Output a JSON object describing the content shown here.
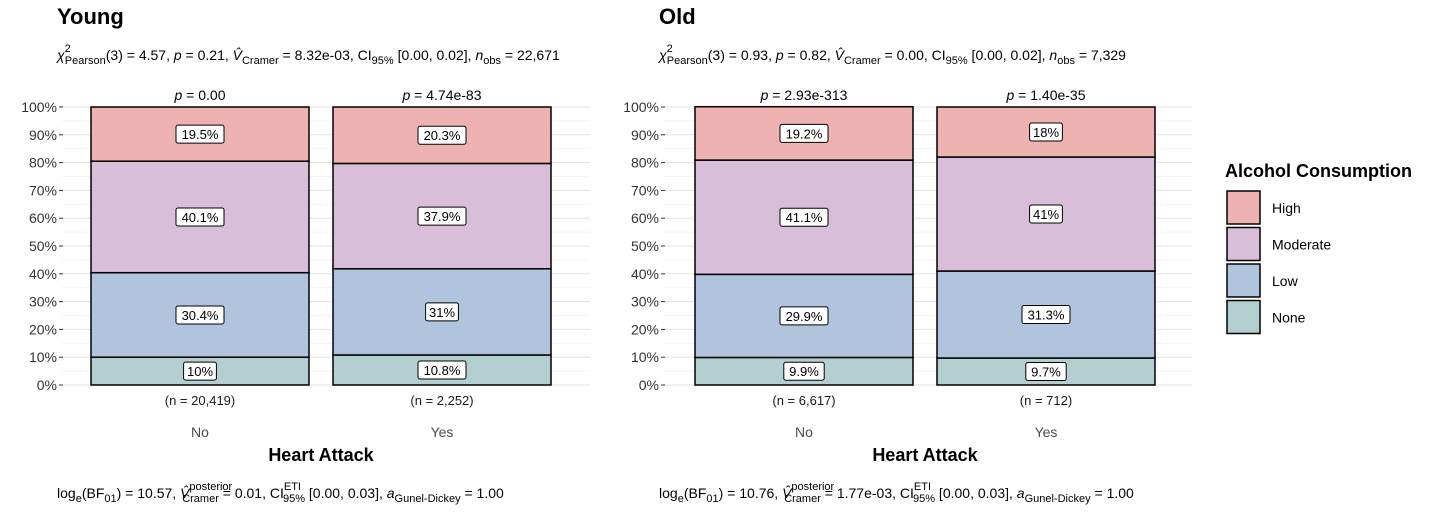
{
  "chart_data": {
    "type": "bar",
    "stacked": "percent",
    "legend": {
      "title": "Alcohol Consumption",
      "position": "right",
      "items": [
        {
          "name": "High",
          "color": "#eeb2b0"
        },
        {
          "name": "Moderate",
          "color": "#d8bed8"
        },
        {
          "name": "Low",
          "color": "#b0c4de"
        },
        {
          "name": "None",
          "color": "#b4cfcf"
        }
      ]
    },
    "y_ticks": [
      "0%",
      "10%",
      "20%",
      "30%",
      "40%",
      "50%",
      "60%",
      "70%",
      "80%",
      "90%",
      "100%"
    ],
    "ylim": [
      0,
      100
    ],
    "panels": [
      {
        "title": "Young",
        "subtitle": "χ²Pearson(3) = 4.57, p = 0.21, V̂Cramer = 8.32e-03, CI95% [0.00, 0.02], nobs = 22,671",
        "xlabel": "Heart Attack",
        "caption": "loge(BF01) = 10.57, V̂posteriorCramer = 0.01, CIETI95% [0.00, 0.03], aGunel-Dickey = 1.00",
        "categories": [
          {
            "name": "No",
            "n_label": "(n = 20,419)",
            "p_label": "p = 0.00",
            "values": {
              "None": 10,
              "Low": 30.4,
              "Moderate": 40.1,
              "High": 19.5
            },
            "labels": {
              "None": "10%",
              "Low": "30.4%",
              "Moderate": "40.1%",
              "High": "19.5%"
            }
          },
          {
            "name": "Yes",
            "n_label": "(n = 2,252)",
            "p_label": "p = 4.74e-83",
            "values": {
              "None": 10.8,
              "Low": 31,
              "Moderate": 37.9,
              "High": 20.3
            },
            "labels": {
              "None": "10.8%",
              "Low": "31%",
              "Moderate": "37.9%",
              "High": "20.3%"
            }
          }
        ]
      },
      {
        "title": "Old",
        "subtitle": "χ²Pearson(3) = 0.93, p = 0.82, V̂Cramer = 0.00, CI95% [0.00, 0.02], nobs = 7,329",
        "xlabel": "Heart Attack",
        "caption": "loge(BF01) = 10.76, V̂posteriorCramer = 1.77e-03, CIETI95% [0.00, 0.03], aGunel-Dickey = 1.00",
        "categories": [
          {
            "name": "No",
            "n_label": "(n = 6,617)",
            "p_label": "p = 2.93e-313",
            "values": {
              "None": 9.9,
              "Low": 29.9,
              "Moderate": 41.1,
              "High": 19.2
            },
            "labels": {
              "None": "9.9%",
              "Low": "29.9%",
              "Moderate": "41.1%",
              "High": "19.2%"
            }
          },
          {
            "name": "Yes",
            "n_label": "(n = 712)",
            "p_label": "p = 1.40e-35",
            "values": {
              "None": 9.7,
              "Low": 31.3,
              "Moderate": 41,
              "High": 18
            },
            "labels": {
              "None": "9.7%",
              "Low": "31.3%",
              "Moderate": "41%",
              "High": "18%"
            }
          }
        ]
      }
    ]
  }
}
